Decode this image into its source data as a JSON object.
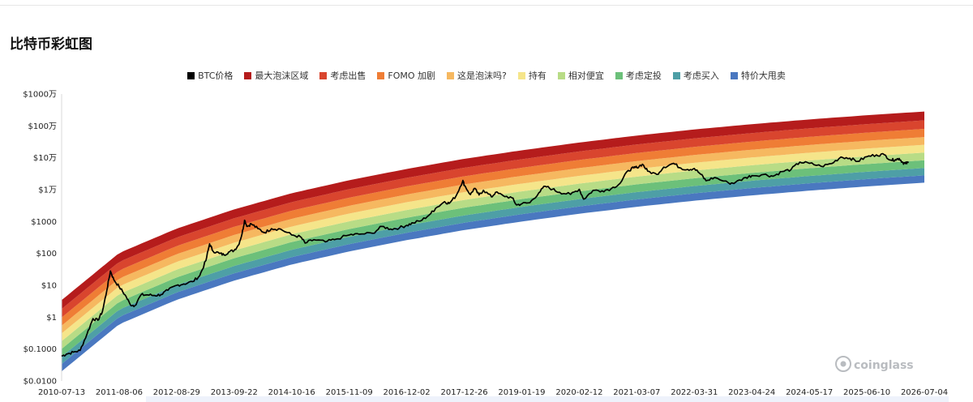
{
  "page": {
    "title": "比特币彩虹图"
  },
  "watermark": {
    "text": "coinglass"
  },
  "chart_data": {
    "type": "area",
    "title": "比特币彩虹图",
    "xlabel": "",
    "ylabel": "",
    "y_scale": "log",
    "ylim": [
      0.01,
      10000000
    ],
    "xlim": [
      "2010-07-13",
      "2026-07-04"
    ],
    "x_ticks": [
      "2010-07-13",
      "2011-08-06",
      "2012-08-29",
      "2013-09-22",
      "2014-10-16",
      "2015-11-09",
      "2016-12-02",
      "2017-12-26",
      "2019-01-19",
      "2020-02-12",
      "2021-03-07",
      "2022-03-31",
      "2023-04-24",
      "2024-05-17",
      "2025-06-10",
      "2026-07-04"
    ],
    "y_ticks": [
      {
        "value": 0.01,
        "label": "$0.0100"
      },
      {
        "value": 0.1,
        "label": "$0.1000"
      },
      {
        "value": 1,
        "label": "$1"
      },
      {
        "value": 10,
        "label": "$10"
      },
      {
        "value": 100,
        "label": "$100"
      },
      {
        "value": 1000,
        "label": "$1000"
      },
      {
        "value": 10000,
        "label": "$1万"
      },
      {
        "value": 100000,
        "label": "$10万"
      },
      {
        "value": 1000000,
        "label": "$100万"
      },
      {
        "value": 10000000,
        "label": "$1000万"
      }
    ],
    "legend": {
      "placement": "top-center",
      "items": [
        {
          "label": "BTC价格",
          "color": "#000000"
        },
        {
          "label": "最大泡沫区域",
          "color": "#b51c1c"
        },
        {
          "label": "考虑出售",
          "color": "#d9452e"
        },
        {
          "label": "FOMO 加剧",
          "color": "#ef7d35"
        },
        {
          "label": "这是泡沫吗?",
          "color": "#f6b860"
        },
        {
          "label": "持有",
          "color": "#f5e58a"
        },
        {
          "label": "相对便宜",
          "color": "#b8dc86"
        },
        {
          "label": "考虑定投",
          "color": "#6cc07a"
        },
        {
          "label": "考虑买入",
          "color": "#4e9fa6"
        },
        {
          "label": "特价大甩卖",
          "color": "#4a78c0"
        }
      ]
    },
    "rainbow_bands": {
      "base_at": [
        [
          "2010-07-13",
          0.02
        ],
        [
          "2011-08-06",
          0.6
        ],
        [
          "2012-08-29",
          3.5
        ],
        [
          "2013-09-22",
          14
        ],
        [
          "2014-10-16",
          45
        ],
        [
          "2015-11-09",
          115
        ],
        [
          "2016-12-02",
          260
        ],
        [
          "2017-12-26",
          540
        ],
        [
          "2019-01-19",
          1000
        ],
        [
          "2020-02-12",
          1750
        ],
        [
          "2021-03-07",
          2900
        ],
        [
          "2022-03-31",
          4500
        ],
        [
          "2023-04-24",
          6600
        ],
        [
          "2024-05-17",
          9300
        ],
        [
          "2025-06-10",
          12600
        ],
        [
          "2026-07-04",
          16500
        ]
      ],
      "band_ratios": [
        1.7,
        1.7,
        1.75,
        1.75,
        1.75,
        1.75,
        1.8,
        1.85,
        1.9
      ]
    },
    "series": [
      {
        "name": "BTC价格",
        "color": "#000000",
        "points": [
          [
            "2010-07-13",
            0.06
          ],
          [
            "2010-08-15",
            0.07
          ],
          [
            "2010-10-01",
            0.08
          ],
          [
            "2010-11-15",
            0.09
          ],
          [
            "2011-01-01",
            0.3
          ],
          [
            "2011-02-10",
            0.9
          ],
          [
            "2011-03-15",
            0.8
          ],
          [
            "2011-04-15",
            1.5
          ],
          [
            "2011-05-15",
            7
          ],
          [
            "2011-06-08",
            28
          ],
          [
            "2011-07-01",
            15
          ],
          [
            "2011-08-06",
            9
          ],
          [
            "2011-09-15",
            5
          ],
          [
            "2011-10-20",
            2.5
          ],
          [
            "2011-11-20",
            2.3
          ],
          [
            "2012-01-01",
            5
          ],
          [
            "2012-02-15",
            5
          ],
          [
            "2012-04-01",
            4.8
          ],
          [
            "2012-05-15",
            5.1
          ],
          [
            "2012-07-01",
            7
          ],
          [
            "2012-08-29",
            10
          ],
          [
            "2012-10-15",
            11
          ],
          [
            "2012-12-15",
            13
          ],
          [
            "2013-02-01",
            20
          ],
          [
            "2013-03-15",
            60
          ],
          [
            "2013-04-09",
            200
          ],
          [
            "2013-05-01",
            120
          ],
          [
            "2013-06-15",
            100
          ],
          [
            "2013-07-15",
            90
          ],
          [
            "2013-08-15",
            110
          ],
          [
            "2013-09-22",
            125
          ],
          [
            "2013-10-20",
            180
          ],
          [
            "2013-11-15",
            420
          ],
          [
            "2013-12-01",
            1100
          ],
          [
            "2013-12-20",
            700
          ],
          [
            "2014-01-15",
            850
          ],
          [
            "2014-03-01",
            600
          ],
          [
            "2014-04-15",
            450
          ],
          [
            "2014-06-01",
            600
          ],
          [
            "2014-08-01",
            580
          ],
          [
            "2014-10-16",
            380
          ],
          [
            "2014-12-15",
            330
          ],
          [
            "2015-01-15",
            210
          ],
          [
            "2015-03-15",
            270
          ],
          [
            "2015-06-01",
            230
          ],
          [
            "2015-08-01",
            270
          ],
          [
            "2015-11-09",
            380
          ],
          [
            "2016-01-15",
            400
          ],
          [
            "2016-04-15",
            430
          ],
          [
            "2016-06-18",
            700
          ],
          [
            "2016-08-15",
            580
          ],
          [
            "2016-10-15",
            640
          ],
          [
            "2016-12-02",
            760
          ],
          [
            "2017-01-15",
            900
          ],
          [
            "2017-03-15",
            1100
          ],
          [
            "2017-05-15",
            1800
          ],
          [
            "2017-06-15",
            2600
          ],
          [
            "2017-08-15",
            4200
          ],
          [
            "2017-09-15",
            3700
          ],
          [
            "2017-11-01",
            6400
          ],
          [
            "2017-12-17",
            19500
          ],
          [
            "2017-12-26",
            14000
          ],
          [
            "2018-02-06",
            7000
          ],
          [
            "2018-03-05",
            11000
          ],
          [
            "2018-04-05",
            6800
          ],
          [
            "2018-05-05",
            9600
          ],
          [
            "2018-06-29",
            5900
          ],
          [
            "2018-07-25",
            8200
          ],
          [
            "2018-09-15",
            6500
          ],
          [
            "2018-11-15",
            5500
          ],
          [
            "2018-12-15",
            3300
          ],
          [
            "2019-01-19",
            3600
          ],
          [
            "2019-03-15",
            3900
          ],
          [
            "2019-05-15",
            8000
          ],
          [
            "2019-06-26",
            12800
          ],
          [
            "2019-08-15",
            10300
          ],
          [
            "2019-10-01",
            8300
          ],
          [
            "2019-12-15",
            7100
          ],
          [
            "2020-02-12",
            10300
          ],
          [
            "2020-03-13",
            5000
          ],
          [
            "2020-05-15",
            9500
          ],
          [
            "2020-07-15",
            9200
          ],
          [
            "2020-09-15",
            10700
          ],
          [
            "2020-11-15",
            16000
          ],
          [
            "2021-01-08",
            40000
          ],
          [
            "2021-02-15",
            48000
          ],
          [
            "2021-03-07",
            50000
          ],
          [
            "2021-04-14",
            63000
          ],
          [
            "2021-05-20",
            38000
          ],
          [
            "2021-07-20",
            30000
          ],
          [
            "2021-09-05",
            51000
          ],
          [
            "2021-11-10",
            67000
          ],
          [
            "2022-01-01",
            47000
          ],
          [
            "2022-02-15",
            43000
          ],
          [
            "2022-03-31",
            46000
          ],
          [
            "2022-05-15",
            30000
          ],
          [
            "2022-06-18",
            19000
          ],
          [
            "2022-08-15",
            24000
          ],
          [
            "2022-11-20",
            16000
          ],
          [
            "2023-01-01",
            16600
          ],
          [
            "2023-03-15",
            24000
          ],
          [
            "2023-04-24",
            27500
          ],
          [
            "2023-07-15",
            30000
          ],
          [
            "2023-09-15",
            26500
          ],
          [
            "2023-11-15",
            37000
          ],
          [
            "2024-01-15",
            43000
          ],
          [
            "2024-03-14",
            73000
          ],
          [
            "2024-05-17",
            67000
          ],
          [
            "2024-08-05",
            54000
          ],
          [
            "2024-10-15",
            66000
          ],
          [
            "2024-12-17",
            106000
          ],
          [
            "2025-02-15",
            97000
          ],
          [
            "2025-04-08",
            77000
          ],
          [
            "2025-06-10",
            108000
          ],
          [
            "2025-08-14",
            123000
          ],
          [
            "2025-10-06",
            125000
          ],
          [
            "2025-11-21",
            84000
          ],
          [
            "2025-12-20",
            88000
          ],
          [
            "2026-01-15",
            95000
          ],
          [
            "2026-02-10",
            70000
          ],
          [
            "2026-02-25",
            66000
          ],
          [
            "2026-03-20",
            71000
          ]
        ]
      }
    ]
  }
}
